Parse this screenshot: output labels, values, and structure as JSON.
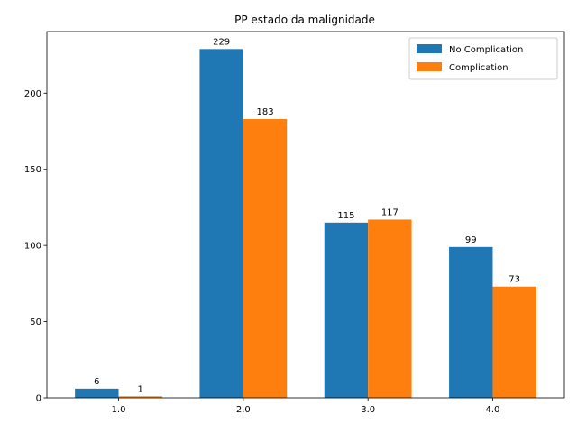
{
  "chart_data": {
    "type": "bar",
    "title": "PP estado da malignidade",
    "xlabel": "",
    "ylabel": "",
    "categories": [
      "1.0",
      "2.0",
      "3.0",
      "4.0"
    ],
    "series": [
      {
        "name": "No Complication",
        "values": [
          6,
          229,
          115,
          99
        ],
        "color": "#1f77b4"
      },
      {
        "name": "Complication",
        "values": [
          1,
          183,
          117,
          73
        ],
        "color": "#ff7f0e"
      }
    ],
    "ylim": [
      0,
      240.45
    ],
    "yticks": [
      0,
      50,
      100,
      150,
      200
    ],
    "grid": false,
    "legend_position": "top-right"
  }
}
